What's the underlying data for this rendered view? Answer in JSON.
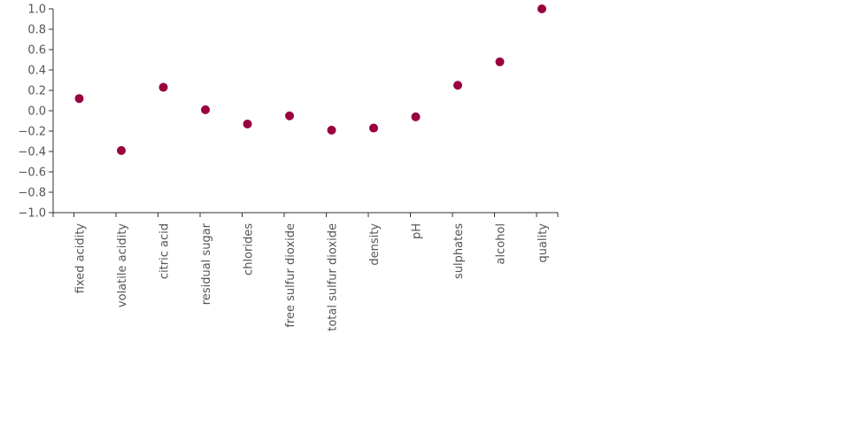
{
  "chart_data": {
    "type": "scatter",
    "categories": [
      "fixed acidity",
      "volatile acidity",
      "citric acid",
      "residual sugar",
      "chlorides",
      "free sulfur dioxide",
      "total sulfur dioxide",
      "density",
      "pH",
      "sulphates",
      "alcohol",
      "quality"
    ],
    "values": [
      0.12,
      -0.39,
      0.23,
      0.01,
      -0.13,
      -0.05,
      -0.19,
      -0.17,
      -0.06,
      0.25,
      0.48,
      1.0
    ],
    "yticks": [
      "1.0",
      "0.8",
      "0.6",
      "0.4",
      "0.2",
      "0.0",
      "−0.2",
      "−0.4",
      "−0.6",
      "−0.8",
      "−1.0"
    ],
    "ylim": [
      -1.0,
      1.0
    ],
    "marker_color": "#99003f",
    "grid": false,
    "legend": "none"
  }
}
